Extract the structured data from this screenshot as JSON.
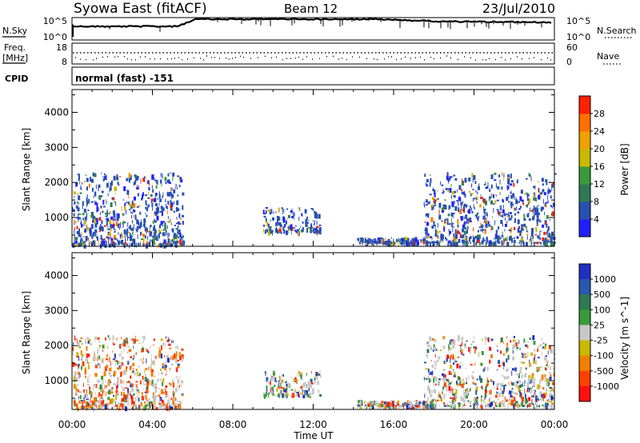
{
  "header": {
    "station": "Syowa East (fitACF)",
    "beam": "Beam 12",
    "date": "23/Jul/2010"
  },
  "panels": {
    "nsky": {
      "label": "N.Sky",
      "ticks_left": [
        "10^5",
        "10^0"
      ],
      "right_label": "N.Search",
      "ticks_right": [
        "10^5",
        "10^0"
      ]
    },
    "freq": {
      "label_line1": "Freq.",
      "label_line2": "[MHz]",
      "ticks_left": [
        "18",
        "8"
      ],
      "right_label": "Nave",
      "ticks_right": [
        "60",
        "0"
      ]
    },
    "cpid": {
      "label": "CPID",
      "text": "normal (fast) -151"
    }
  },
  "colors": {
    "power": [
      "#2020ff",
      "#2850b0",
      "#2f7a55",
      "#3a9a3a",
      "#c8b800",
      "#f0a000",
      "#ff7000",
      "#ff2000"
    ],
    "velocity": [
      "#2030c0",
      "#2858b0",
      "#2f7a55",
      "#3a9a3a",
      "#c8c8c8",
      "#c8b800",
      "#f08000",
      "#ff4000",
      "#ff1010"
    ]
  },
  "chart_data": [
    {
      "type": "heatmap",
      "name": "power",
      "ylabel": "Slant Range [km]",
      "x_ticks": [
        "00:00",
        "04:00",
        "08:00",
        "12:00",
        "16:00",
        "20:00",
        "00:00"
      ],
      "y_ticks": [
        1000,
        2000,
        3000,
        4000
      ],
      "ylim": [
        180,
        4650
      ],
      "colorbar": {
        "label": "Power [dB]",
        "ticks": [
          4,
          8,
          12,
          16,
          20,
          24,
          28
        ],
        "range": [
          0,
          32
        ]
      },
      "echo_regions": [
        {
          "start": "00:00",
          "end": "05:30",
          "range_km": [
            250,
            2300
          ],
          "density": "high"
        },
        {
          "start": "09:30",
          "end": "12:20",
          "range_km": [
            600,
            1300
          ],
          "density": "medium"
        },
        {
          "start": "14:10",
          "end": "17:40",
          "range_km": [
            300,
            450
          ],
          "density": "medium"
        },
        {
          "start": "17:30",
          "end": "24:00",
          "range_km": [
            300,
            2300
          ],
          "density": "high"
        }
      ]
    },
    {
      "type": "heatmap",
      "name": "velocity",
      "xlabel": "Time UT",
      "ylabel": "Slant Range [km]",
      "x_ticks": [
        "00:00",
        "04:00",
        "08:00",
        "12:00",
        "16:00",
        "20:00",
        "00:00"
      ],
      "y_ticks": [
        1000,
        2000,
        3000,
        4000
      ],
      "ylim": [
        180,
        4650
      ],
      "colorbar": {
        "label": "Velocity [m s^-1]",
        "ticks": [
          "1000",
          "500",
          "100",
          "25",
          "-25",
          "-100",
          "-500",
          "-1000"
        ]
      },
      "echo_regions": [
        {
          "start": "00:00",
          "end": "05:30",
          "range_km": [
            250,
            2300
          ],
          "density": "high"
        },
        {
          "start": "09:30",
          "end": "12:20",
          "range_km": [
            600,
            1300
          ],
          "density": "medium"
        },
        {
          "start": "14:10",
          "end": "17:40",
          "range_km": [
            300,
            450
          ],
          "density": "medium"
        },
        {
          "start": "17:30",
          "end": "24:00",
          "range_km": [
            300,
            2300
          ],
          "density": "high"
        }
      ]
    }
  ]
}
